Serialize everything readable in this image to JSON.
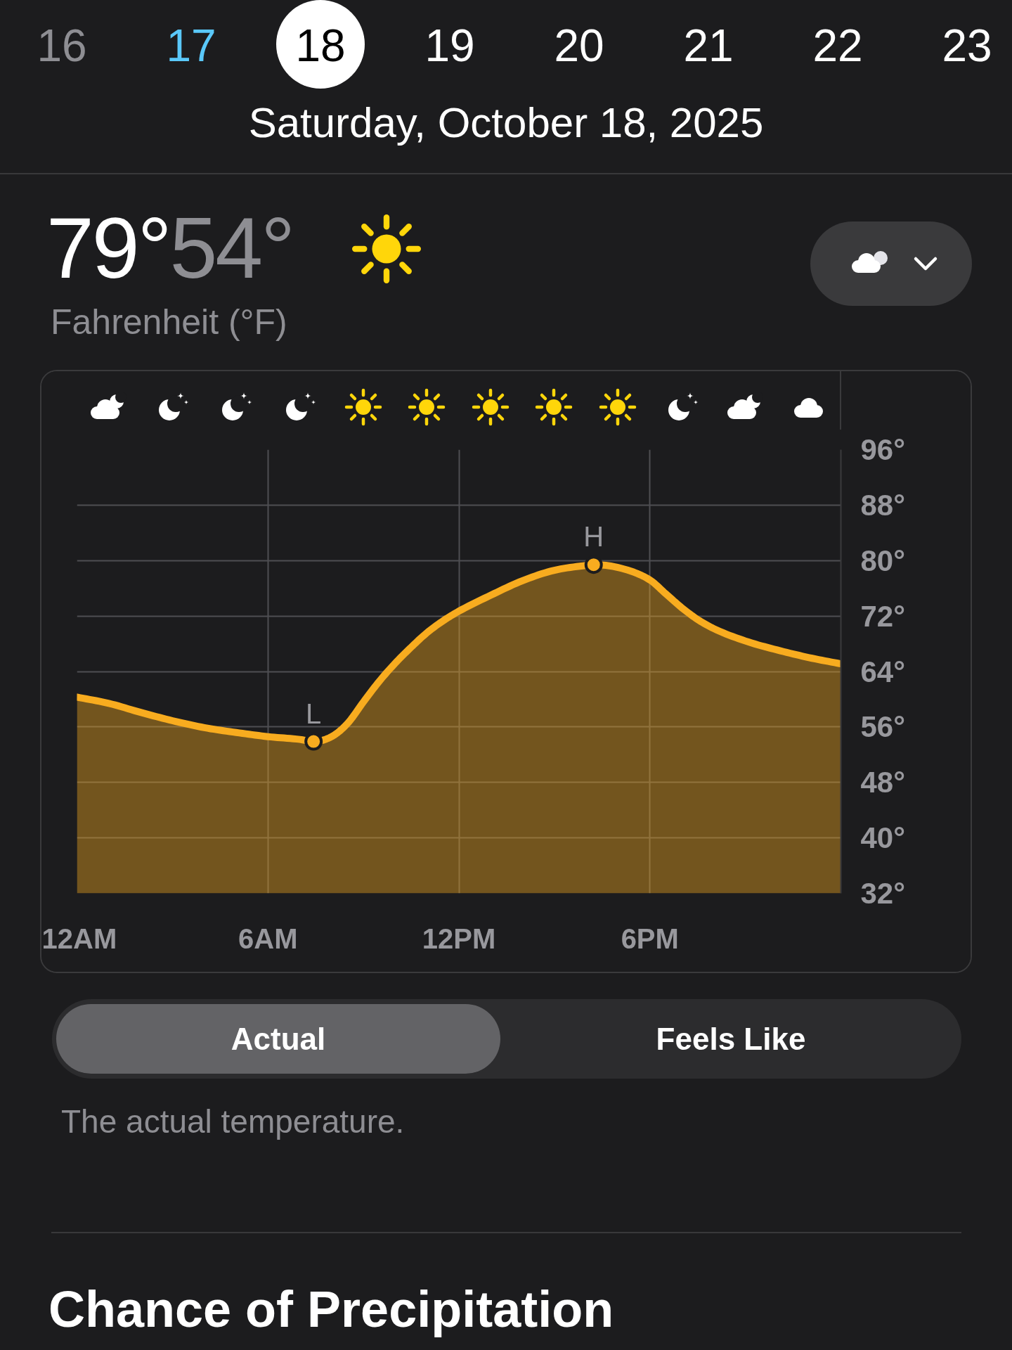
{
  "chart_data": {
    "type": "area",
    "title": "Saturday, October 18, 2025",
    "subtitle": "Fahrenheit (°F)",
    "x": [
      "2025-10-18T00:00",
      "2025-10-18T01:00",
      "2025-10-18T02:00",
      "2025-10-18T03:00",
      "2025-10-18T04:00",
      "2025-10-18T05:00",
      "2025-10-18T06:00",
      "2025-10-18T07:00",
      "2025-10-18T07:26",
      "2025-10-18T08:00",
      "2025-10-18T08:30",
      "2025-10-18T09:00",
      "2025-10-18T09:30",
      "2025-10-18T10:00",
      "2025-10-18T10:30",
      "2025-10-18T11:00",
      "2025-10-18T11:30",
      "2025-10-18T12:00",
      "2025-10-18T13:00",
      "2025-10-18T14:00",
      "2025-10-18T15:00",
      "2025-10-18T16:00",
      "2025-10-18T16:14",
      "2025-10-18T17:00",
      "2025-10-18T18:00",
      "2025-10-18T18:30",
      "2025-10-18T19:00",
      "2025-10-18T19:30",
      "2025-10-18T20:00",
      "2025-10-18T21:00",
      "2025-10-18T22:00",
      "2025-10-18T23:00",
      "2025-10-19T00:00"
    ],
    "series": [
      {
        "color": "#f8ac1f",
        "values": [
          60.3,
          59.4,
          58.1,
          56.9,
          55.9,
          55.2,
          54.6,
          54.2,
          53.9,
          54.6,
          56.5,
          59.6,
          62.6,
          65.2,
          67.5,
          69.6,
          71.3,
          72.7,
          75.0,
          77.1,
          78.6,
          79.3,
          79.4,
          79.0,
          77.2,
          75.2,
          73.2,
          71.5,
          70.2,
          68.4,
          67.1,
          66.0,
          65.1
        ]
      }
    ],
    "xlim": [
      "2025-10-18T00:00",
      "2025-10-19T00:00"
    ],
    "xticks": [
      {
        "value": "2025-10-18T00:00",
        "label": "12AM"
      },
      {
        "value": "2025-10-18T06:00",
        "label": "6AM"
      },
      {
        "value": "2025-10-18T12:00",
        "label": "12PM"
      },
      {
        "value": "2025-10-18T18:00",
        "label": "6PM"
      }
    ],
    "ylim": [
      32,
      96
    ],
    "yticks": [
      {
        "value": 32,
        "label": "32°"
      },
      {
        "value": 40,
        "label": "40°"
      },
      {
        "value": 48,
        "label": "48°"
      },
      {
        "value": 56,
        "label": "56°"
      },
      {
        "value": 64,
        "label": "64°"
      },
      {
        "value": 72,
        "label": "72°"
      },
      {
        "value": 80,
        "label": "80°"
      },
      {
        "value": 88,
        "label": "88°"
      },
      {
        "value": 96,
        "label": "96°"
      }
    ],
    "grid": true,
    "annotations": [
      "16",
      "17",
      "18",
      "19",
      "20",
      "21",
      "22",
      "23",
      "79°",
      "54°",
      "Actual",
      "Feels Like",
      "The actual temperature.",
      "Chance of Precipitation",
      {
        "text": "H",
        "x": "2025-10-18T16:14",
        "y": 79.4
      },
      {
        "text": "L",
        "x": "2025-10-18T07:26",
        "y": 53.9
      }
    ]
  }
}
